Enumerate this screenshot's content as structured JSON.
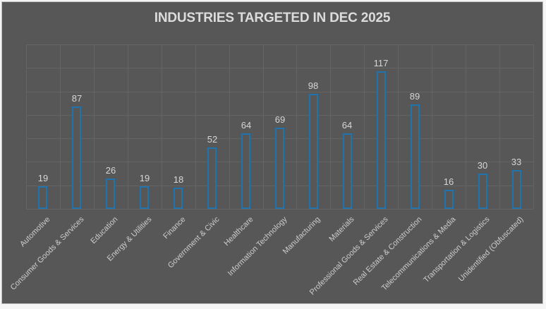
{
  "frame": {
    "background_color": "#575757",
    "border_color": "#bdbdbd",
    "gridline_color": "#646464",
    "title_color": "#dcdcdc",
    "value_label_color": "#d6d6d6",
    "axis_label_color": "#cccccc"
  },
  "chart_data": {
    "type": "bar",
    "title": "INDUSTRIES TARGETED IN DEC 2025",
    "categories": [
      "Automotive",
      "Consumer Goods & Services",
      "Education",
      "Energy & Utilities",
      "Finance",
      "Government & Civic",
      "Healthcare",
      "Information Technology",
      "Manufacturing",
      "Materials",
      "Professional Goods & Services",
      "Real Estate & Construction",
      "Telecommunications & Media",
      "Transportation & Logistics",
      "Unidentified (Obfuscated)"
    ],
    "values": [
      19,
      87,
      26,
      19,
      18,
      52,
      64,
      69,
      98,
      64,
      117,
      89,
      16,
      30,
      33
    ],
    "xlabel": "",
    "ylabel": "",
    "ylim": [
      0,
      140
    ],
    "gridline_step": 20,
    "grid": true,
    "legend": false,
    "data_labels": true,
    "bar_outline_color": "#1f74ad",
    "bar_fill_color": "#575757",
    "x_tick_rotation_deg": 45
  }
}
